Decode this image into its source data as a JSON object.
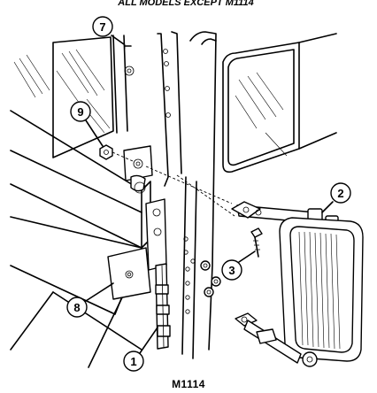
{
  "header": {
    "text": "ALL MODELS EXCEPT M1114"
  },
  "caption": {
    "text": "M1114"
  },
  "callouts": [
    {
      "id": "1",
      "label": "1"
    },
    {
      "id": "2",
      "label": "2"
    },
    {
      "id": "3",
      "label": "3"
    },
    {
      "id": "7",
      "label": "7"
    },
    {
      "id": "8",
      "label": "8"
    },
    {
      "id": "9",
      "label": "9"
    }
  ],
  "parts": [
    "hinge",
    "mirror-assembly",
    "screw",
    "cotter-pin",
    "bracket",
    "nut"
  ]
}
